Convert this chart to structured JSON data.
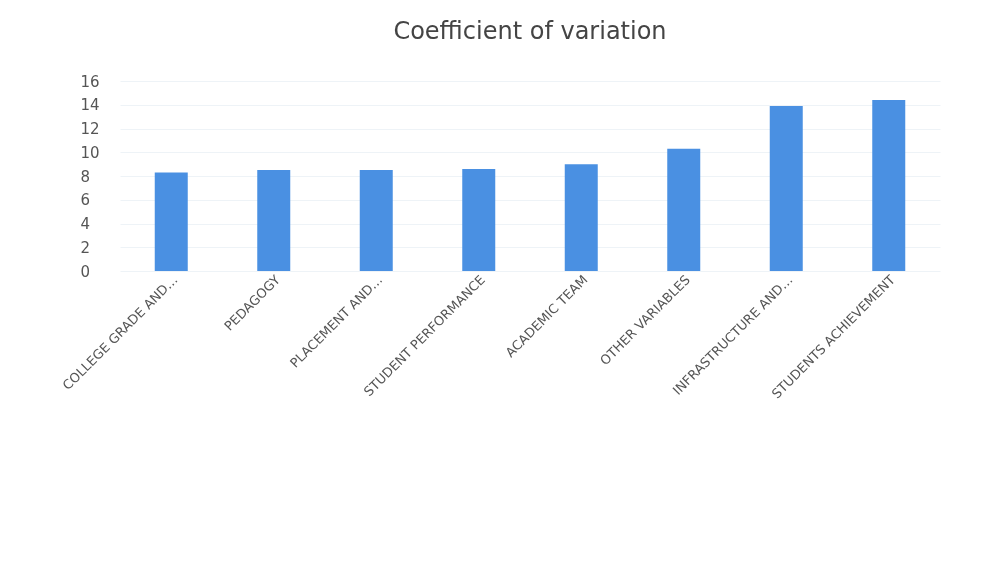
{
  "chart_data": {
    "type": "bar",
    "title": "Coefficient of variation",
    "categories": [
      "COLLEGE GRADE AND…",
      "PEDAGOGY",
      "PLACEMENT AND…",
      "STUDENT PERFORMANCE",
      "ACADEMIC TEAM",
      "OTHER VARIABLES",
      "INFRASTRUCTURE AND…",
      "STUDENTS ACHIEVEMENT"
    ],
    "values": [
      8.3,
      8.5,
      8.5,
      8.6,
      9.0,
      10.3,
      13.9,
      14.4
    ],
    "color": "#4a90e2",
    "ylim": [
      0,
      16
    ],
    "yticks": [
      0,
      2,
      4,
      6,
      8,
      10,
      12,
      14,
      16
    ],
    "grid": true
  }
}
